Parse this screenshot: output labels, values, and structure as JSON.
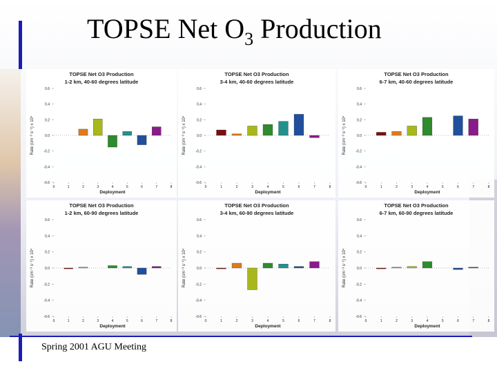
{
  "slide": {
    "title_main": "TOPSE Net O",
    "title_sub": "3",
    "title_end": " Production",
    "footer": "Spring 2001 AGU Meeting",
    "accent_color": "#1c1cb4"
  },
  "chart_data": [
    {
      "type": "bar",
      "title": "TOPSE Net O3 Production",
      "subtitle": "1-2 km, 40-60 degrees latitude",
      "xlabel": "Deployment",
      "ylabel": "Rate (cm⁻³ s⁻¹) x 10⁴",
      "xticks": [
        "0",
        "1",
        "2",
        "3",
        "4",
        "5",
        "6",
        "7",
        "8"
      ],
      "yticks": [
        "0.6",
        "0.4",
        "0.2",
        "0.0",
        "-0.2",
        "-0.4",
        "-0.6"
      ],
      "ylim": [
        -0.6,
        0.6
      ],
      "x": [
        2,
        3,
        4,
        5,
        6,
        7
      ],
      "values": [
        0.08,
        0.21,
        -0.15,
        0.05,
        -0.12,
        0.11
      ],
      "colors": [
        "#e07b1a",
        "#a8b81c",
        "#2e8b2e",
        "#22918c",
        "#214f9c",
        "#8a1b8a"
      ]
    },
    {
      "type": "bar",
      "title": "TOPSE Net O3 Production",
      "subtitle": "3-4 km, 40-60 degrees latitude",
      "xlabel": "Deployment",
      "ylabel": "Rate (cm⁻³ s⁻¹) x 10⁴",
      "xticks": [
        "0",
        "1",
        "2",
        "3",
        "4",
        "5",
        "6",
        "7",
        "8"
      ],
      "yticks": [
        "0.6",
        "0.4",
        "0.2",
        "0.0",
        "-0.2",
        "-0.4",
        "-0.6"
      ],
      "ylim": [
        -0.6,
        0.6
      ],
      "x": [
        1,
        2,
        3,
        4,
        5,
        6,
        7
      ],
      "values": [
        0.07,
        0.02,
        0.12,
        0.14,
        0.18,
        0.27,
        -0.03
      ],
      "colors": [
        "#7a0f12",
        "#e07b1a",
        "#a8b81c",
        "#2e8b2e",
        "#22918c",
        "#214f9c",
        "#8a1b8a"
      ]
    },
    {
      "type": "bar",
      "title": "TOPSE Net O3 Production",
      "subtitle": "6-7 km, 40-60 degrees latitude",
      "xlabel": "Deployment",
      "ylabel": "Rate (cm⁻³ s⁻¹) x 10⁴",
      "xticks": [
        "0",
        "1",
        "2",
        "3",
        "4",
        "5",
        "6",
        "7",
        "8"
      ],
      "yticks": [
        "0.6",
        "0.4",
        "0.2",
        "0.0",
        "-0.2",
        "-0.4",
        "-0.6"
      ],
      "ylim": [
        -0.6,
        0.6
      ],
      "x": [
        1,
        2,
        3,
        4,
        6,
        7
      ],
      "values": [
        0.04,
        0.05,
        0.12,
        0.23,
        0.25,
        0.21
      ],
      "colors": [
        "#7a0f12",
        "#e07b1a",
        "#a8b81c",
        "#2e8b2e",
        "#214f9c",
        "#8a1b8a"
      ]
    },
    {
      "type": "bar",
      "title": "TOPSE Net O3 Production",
      "subtitle": "1-2 km, 60-90 degrees latitude",
      "xlabel": "Deployment",
      "ylabel": "Rate (cm⁻³ s⁻¹) x 10⁴",
      "xticks": [
        "0",
        "1",
        "2",
        "3",
        "4",
        "5",
        "6",
        "7",
        "8"
      ],
      "yticks": [
        "0.6",
        "0.4",
        "0.2",
        "0.0",
        "-0.2",
        "-0.4",
        "-0.6"
      ],
      "ylim": [
        -0.6,
        0.6
      ],
      "x": [
        1,
        2,
        4,
        5,
        6,
        7
      ],
      "values": [
        -0.01,
        0.01,
        0.03,
        0.02,
        -0.08,
        0.02
      ],
      "colors": [
        "#7a0f12",
        "#e07b1a",
        "#2e8b2e",
        "#22918c",
        "#214f9c",
        "#8a1b8a"
      ]
    },
    {
      "type": "bar",
      "title": "TOPSE Net O3 Production",
      "subtitle": "3-4 km, 60-90 degrees latitude",
      "xlabel": "Deployment",
      "ylabel": "Rate (cm⁻³ s⁻¹) x 10⁴",
      "xticks": [
        "0",
        "1",
        "2",
        "3",
        "4",
        "5",
        "6",
        "7",
        "8"
      ],
      "yticks": [
        "0.6",
        "0.4",
        "0.2",
        "0.0",
        "-0.2",
        "-0.4",
        "-0.6"
      ],
      "ylim": [
        -0.6,
        0.6
      ],
      "x": [
        1,
        2,
        3,
        4,
        5,
        6,
        7
      ],
      "values": [
        -0.01,
        0.06,
        -0.27,
        0.06,
        0.05,
        0.02,
        0.08
      ],
      "colors": [
        "#7a0f12",
        "#e07b1a",
        "#a8b81c",
        "#2e8b2e",
        "#22918c",
        "#214f9c",
        "#8a1b8a"
      ]
    },
    {
      "type": "bar",
      "title": "TOPSE Net O3 Production",
      "subtitle": "6-7 km, 60-90 degrees latitude",
      "xlabel": "Deployment",
      "ylabel": "Rate (cm⁻³ s⁻¹) x 10⁴",
      "xticks": [
        "0",
        "1",
        "2",
        "3",
        "4",
        "5",
        "6",
        "7",
        "8"
      ],
      "yticks": [
        "0.6",
        "0.4",
        "0.2",
        "0.0",
        "-0.2",
        "-0.4",
        "-0.6"
      ],
      "ylim": [
        -0.6,
        0.6
      ],
      "x": [
        1,
        2,
        3,
        4,
        6,
        7
      ],
      "values": [
        -0.01,
        0.01,
        0.02,
        0.08,
        -0.02,
        0.01
      ],
      "colors": [
        "#7a0f12",
        "#e07b1a",
        "#a8b81c",
        "#2e8b2e",
        "#214f9c",
        "#8a1b8a"
      ]
    }
  ]
}
